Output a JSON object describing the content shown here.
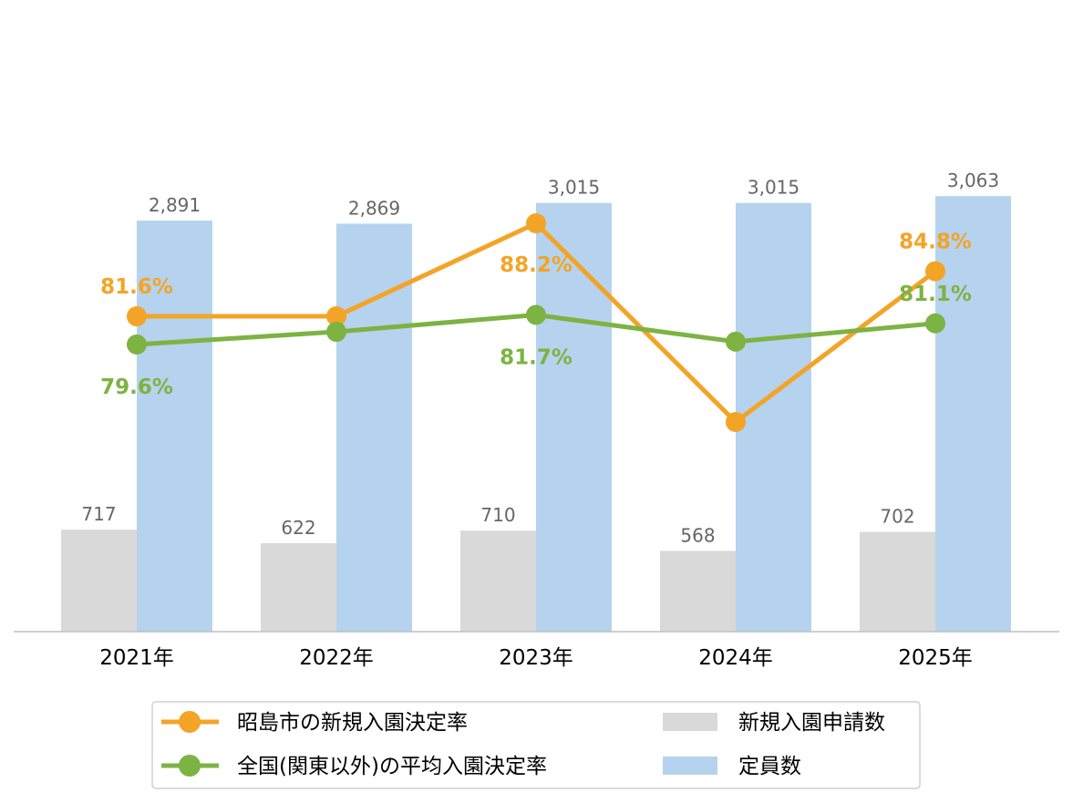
{
  "chart_data": {
    "type": "bar",
    "categories": [
      "2021年",
      "2022年",
      "2023年",
      "2024年",
      "2025年"
    ],
    "bar_series": [
      {
        "name": "新規入園申請数",
        "color": "#d9d9d9",
        "values": [
          717,
          622,
          710,
          568,
          702
        ],
        "value_labels": [
          "717",
          "622",
          "710",
          "568",
          "702"
        ]
      },
      {
        "name": "定員数",
        "color": "#b5d3ee",
        "values": [
          2891,
          2869,
          3015,
          3015,
          3063
        ],
        "value_labels": [
          "2,891",
          "2,869",
          "3,015",
          "3,015",
          "3,063"
        ]
      }
    ],
    "line_series": [
      {
        "name": "昭島市の新規入園決定率",
        "color": "#f3a427",
        "values": [
          81.6,
          81.6,
          88.2,
          74.1,
          84.8
        ],
        "value_labels": [
          "81.6%",
          "",
          "88.2%",
          "",
          "84.8%"
        ]
      },
      {
        "name": "全国(関東以外)の平均入園決定率",
        "color": "#7cb342",
        "values": [
          79.6,
          80.5,
          81.7,
          79.8,
          81.1
        ],
        "value_labels": [
          "79.6%",
          "",
          "81.7%",
          "",
          "81.1%"
        ]
      }
    ],
    "bar_axis_range": [
      0,
      3600
    ],
    "line_axis_range": [
      60,
      93
    ],
    "grid": false,
    "legend_position": "bottom"
  }
}
